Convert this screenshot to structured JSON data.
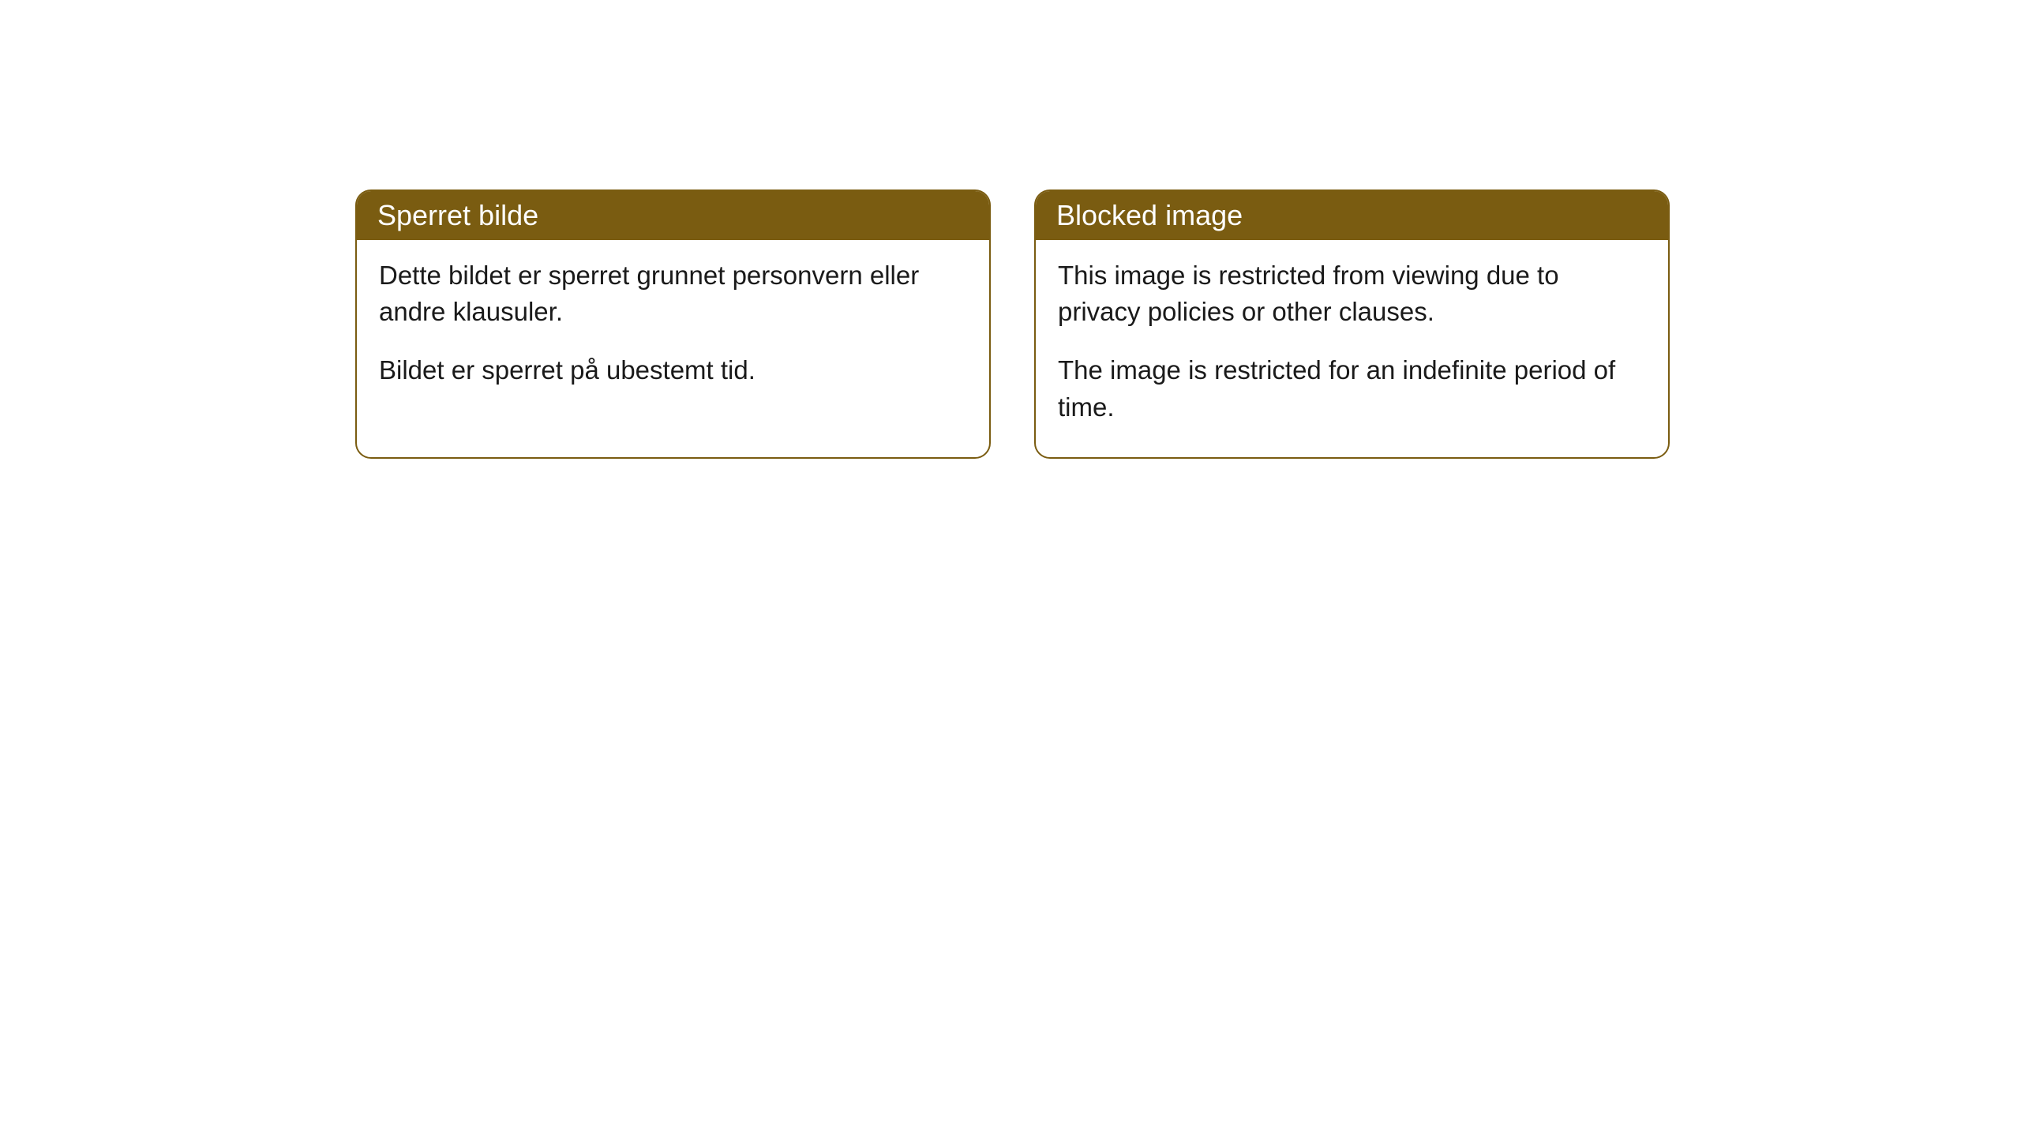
{
  "cards": {
    "left": {
      "title": "Sperret bilde",
      "paragraph1": "Dette bildet er sperret grunnet personvern eller andre klausuler.",
      "paragraph2": "Bildet er sperret på ubestemt tid."
    },
    "right": {
      "title": "Blocked image",
      "paragraph1": "This image is restricted from viewing due to privacy policies or other clauses.",
      "paragraph2": "The image is restricted for an indefinite period of time."
    }
  },
  "style": {
    "header_bg_color": "#7a5c11",
    "header_text_color": "#ffffff",
    "border_color": "#7a5c11",
    "body_bg_color": "#ffffff",
    "body_text_color": "#1a1a1a",
    "border_radius": 20,
    "header_font_size": 36,
    "body_font_size": 33
  }
}
